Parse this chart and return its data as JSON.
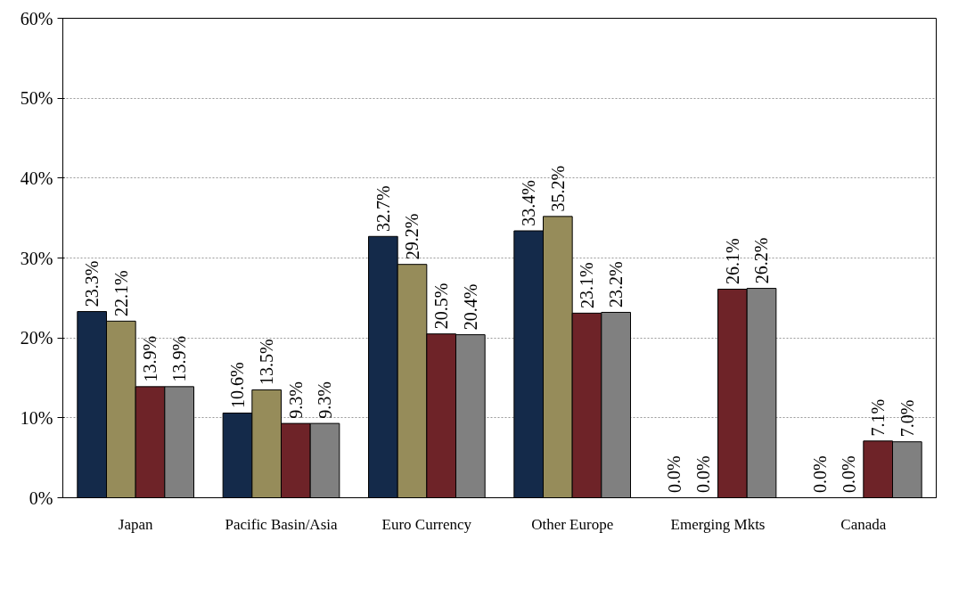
{
  "chart_data": {
    "type": "bar",
    "categories": [
      "Japan",
      "Pacific Basin/Asia",
      "Euro Currency",
      "Other Europe",
      "Emerging Mkts",
      "Canada"
    ],
    "series": [
      {
        "color": "#142a4a",
        "values": [
          23.3,
          10.6,
          32.7,
          33.4,
          0.0,
          0.0
        ],
        "value_labels": [
          "23.3%",
          "10.6%",
          "32.7%",
          "33.4%",
          "0.0%",
          "0.0%"
        ]
      },
      {
        "color": "#968c5a",
        "values": [
          22.1,
          13.5,
          29.2,
          35.2,
          0.0,
          0.0
        ],
        "value_labels": [
          "22.1%",
          "13.5%",
          "29.2%",
          "35.2%",
          "0.0%",
          "0.0%"
        ]
      },
      {
        "color": "#6e2328",
        "values": [
          13.9,
          9.3,
          20.5,
          23.1,
          26.1,
          7.1
        ],
        "value_labels": [
          "13.9%",
          "9.3%",
          "20.5%",
          "23.1%",
          "26.1%",
          "7.1%"
        ]
      },
      {
        "color": "#808080",
        "values": [
          13.9,
          9.3,
          20.4,
          23.2,
          26.2,
          7.0
        ],
        "value_labels": [
          "13.9%",
          "9.3%",
          "20.4%",
          "23.2%",
          "26.2%",
          "7.0%"
        ]
      }
    ],
    "ylim": [
      0,
      60
    ],
    "yticks": [
      {
        "value": 0,
        "label": "0%"
      },
      {
        "value": 10,
        "label": "10%"
      },
      {
        "value": 20,
        "label": "20%"
      },
      {
        "value": 30,
        "label": "30%"
      },
      {
        "value": 40,
        "label": "40%"
      },
      {
        "value": 50,
        "label": "50%"
      },
      {
        "value": 60,
        "label": "60%"
      }
    ],
    "grid": "y"
  }
}
